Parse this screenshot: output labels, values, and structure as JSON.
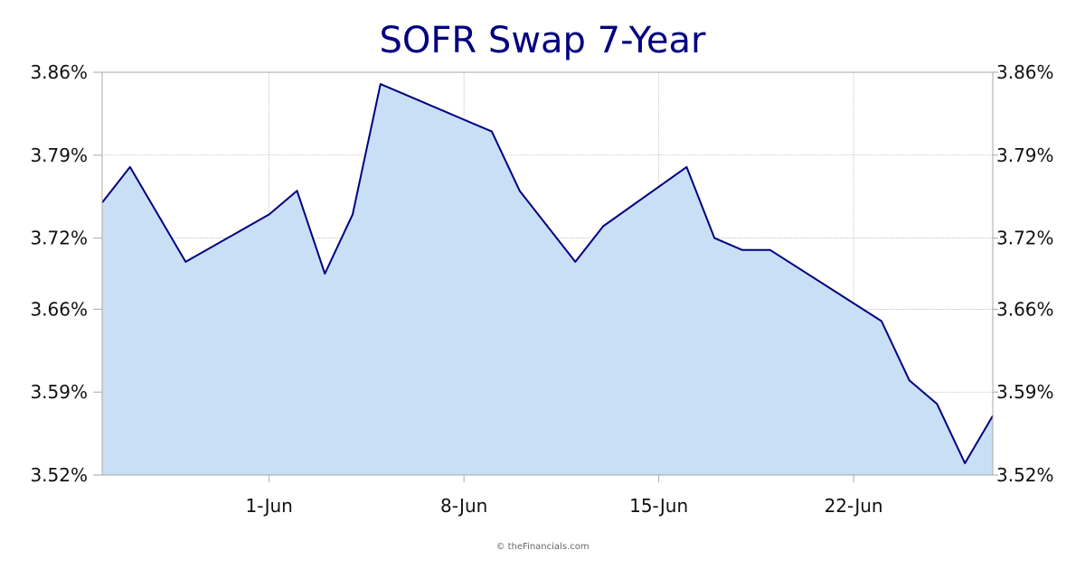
{
  "chart_data": {
    "type": "area",
    "title": "SOFR Swap 7-Year",
    "xlabel": "",
    "ylabel": "",
    "x_ticks": [
      {
        "label": "1-Jun",
        "date": "2023-06-01"
      },
      {
        "label": "8-Jun",
        "date": "2023-06-08"
      },
      {
        "label": "15-Jun",
        "date": "2023-06-15"
      },
      {
        "label": "22-Jun",
        "date": "2023-06-22"
      }
    ],
    "y_ticks": [
      "3.86%",
      "3.79%",
      "3.72%",
      "3.66%",
      "3.59%",
      "3.52%"
    ],
    "ylim": [
      3.52,
      3.86
    ],
    "xlim": [
      "2023-05-26",
      "2023-06-27"
    ],
    "grid": true,
    "legend": "none",
    "colors": {
      "line": "#000080",
      "fill": "#c9dff5",
      "grid": "#aaaaaa",
      "title": "#000080"
    },
    "series": [
      {
        "x": [
          "2023-05-26",
          "2023-05-27",
          "2023-05-29",
          "2023-06-01",
          "2023-06-02",
          "2023-06-03",
          "2023-06-04",
          "2023-06-05",
          "2023-06-06",
          "2023-06-09",
          "2023-06-10",
          "2023-06-12",
          "2023-06-13",
          "2023-06-16",
          "2023-06-17",
          "2023-06-18",
          "2023-06-19",
          "2023-06-23",
          "2023-06-24",
          "2023-06-25",
          "2023-06-26",
          "2023-06-27"
        ],
        "values": [
          3.75,
          3.78,
          3.7,
          3.74,
          3.76,
          3.69,
          3.74,
          3.85,
          3.84,
          3.81,
          3.76,
          3.7,
          3.73,
          3.78,
          3.72,
          3.71,
          3.71,
          3.65,
          3.6,
          3.58,
          3.53,
          3.57
        ]
      }
    ]
  },
  "footer": {
    "credit": "© theFinancials.com"
  }
}
